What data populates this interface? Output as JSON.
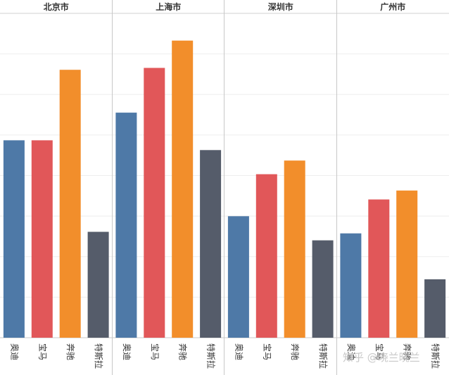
{
  "chart_data": {
    "type": "bar",
    "panels": [
      {
        "title": "北京市",
        "categories": [
          "奥迪",
          "宝马",
          "奔驰",
          "特斯拉"
        ],
        "values": [
          5.07,
          5.07,
          6.88,
          2.72
        ]
      },
      {
        "title": "上海市",
        "categories": [
          "奥迪",
          "宝马",
          "奔驰",
          "特斯拉"
        ],
        "values": [
          5.78,
          6.93,
          7.63,
          4.82
        ]
      },
      {
        "title": "深圳市",
        "categories": [
          "奥迪",
          "宝马",
          "奔驰",
          "特斯拉"
        ],
        "values": [
          3.12,
          4.2,
          4.55,
          2.5
        ]
      },
      {
        "title": "广州市",
        "categories": [
          "奥迪",
          "宝马",
          "奔驰",
          "特斯拉"
        ],
        "values": [
          2.68,
          3.55,
          3.78,
          1.5
        ]
      }
    ],
    "colors": {
      "奥迪": "#4e79a7",
      "宝马": "#e15759",
      "奔驰": "#f28e2b",
      "特斯拉": "#555c6a"
    },
    "ylim": [
      0,
      8.33
    ],
    "grid": true,
    "xlabel": "",
    "ylabel": ""
  },
  "watermark": "知乎 @晓兰晓兰"
}
